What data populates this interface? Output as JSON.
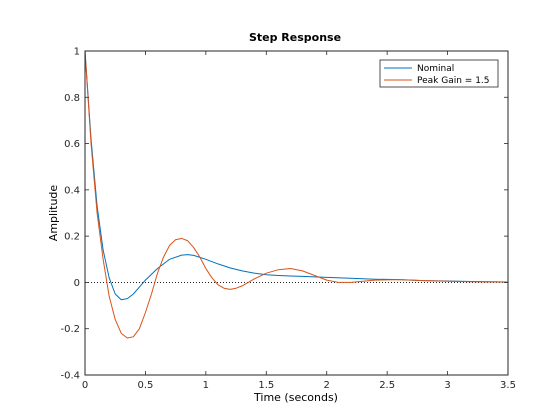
{
  "chart_data": {
    "type": "line",
    "title": "Step Response",
    "xlabel": "Time (seconds)",
    "ylabel": "Amplitude",
    "xlim": [
      0,
      3.5
    ],
    "ylim": [
      -0.4,
      1
    ],
    "xticks": [
      "0",
      "0.5",
      "1",
      "1.5",
      "2",
      "2.5",
      "3",
      "3.5"
    ],
    "yticks": [
      "-0.4",
      "-0.2",
      "0",
      "0.2",
      "0.4",
      "0.6",
      "0.8",
      "1"
    ],
    "grid": false,
    "legend_position": "top-right",
    "reference_line": {
      "y": 0,
      "style": "dotted"
    },
    "series": [
      {
        "name": "Nominal",
        "color": "#0072BD",
        "x": [
          0,
          0.05,
          0.1,
          0.15,
          0.2,
          0.25,
          0.3,
          0.35,
          0.4,
          0.45,
          0.5,
          0.6,
          0.7,
          0.8,
          0.85,
          0.9,
          1.0,
          1.1,
          1.2,
          1.3,
          1.4,
          1.5,
          1.6,
          1.7,
          1.8,
          1.9,
          2.0,
          2.2,
          2.4,
          2.6,
          2.8,
          3.0,
          3.2,
          3.5
        ],
        "y": [
          1.0,
          0.62,
          0.33,
          0.14,
          0.02,
          -0.05,
          -0.075,
          -0.07,
          -0.05,
          -0.02,
          0.01,
          0.06,
          0.1,
          0.118,
          0.12,
          0.117,
          0.1,
          0.08,
          0.063,
          0.05,
          0.04,
          0.033,
          0.03,
          0.028,
          0.026,
          0.024,
          0.022,
          0.018,
          0.014,
          0.012,
          0.008,
          0.006,
          0.004,
          0.002
        ]
      },
      {
        "name": "Peak Gain = 1.5",
        "color": "#D95319",
        "x": [
          0,
          0.05,
          0.1,
          0.15,
          0.2,
          0.25,
          0.3,
          0.35,
          0.4,
          0.45,
          0.5,
          0.55,
          0.6,
          0.65,
          0.7,
          0.75,
          0.8,
          0.85,
          0.9,
          0.95,
          1.0,
          1.05,
          1.1,
          1.15,
          1.2,
          1.25,
          1.3,
          1.35,
          1.4,
          1.5,
          1.6,
          1.7,
          1.8,
          1.9,
          2.0,
          2.1,
          2.2,
          2.3,
          2.4,
          2.6,
          2.8,
          3.0,
          3.2,
          3.5
        ],
        "y": [
          1.0,
          0.6,
          0.3,
          0.1,
          -0.06,
          -0.16,
          -0.22,
          -0.24,
          -0.235,
          -0.2,
          -0.13,
          -0.05,
          0.04,
          0.11,
          0.16,
          0.185,
          0.19,
          0.18,
          0.15,
          0.11,
          0.06,
          0.02,
          -0.01,
          -0.025,
          -0.03,
          -0.025,
          -0.015,
          0.0,
          0.015,
          0.04,
          0.055,
          0.06,
          0.05,
          0.03,
          0.01,
          0.0,
          0.0,
          0.005,
          0.01,
          0.012,
          0.008,
          0.005,
          0.003,
          0.002
        ]
      }
    ]
  }
}
